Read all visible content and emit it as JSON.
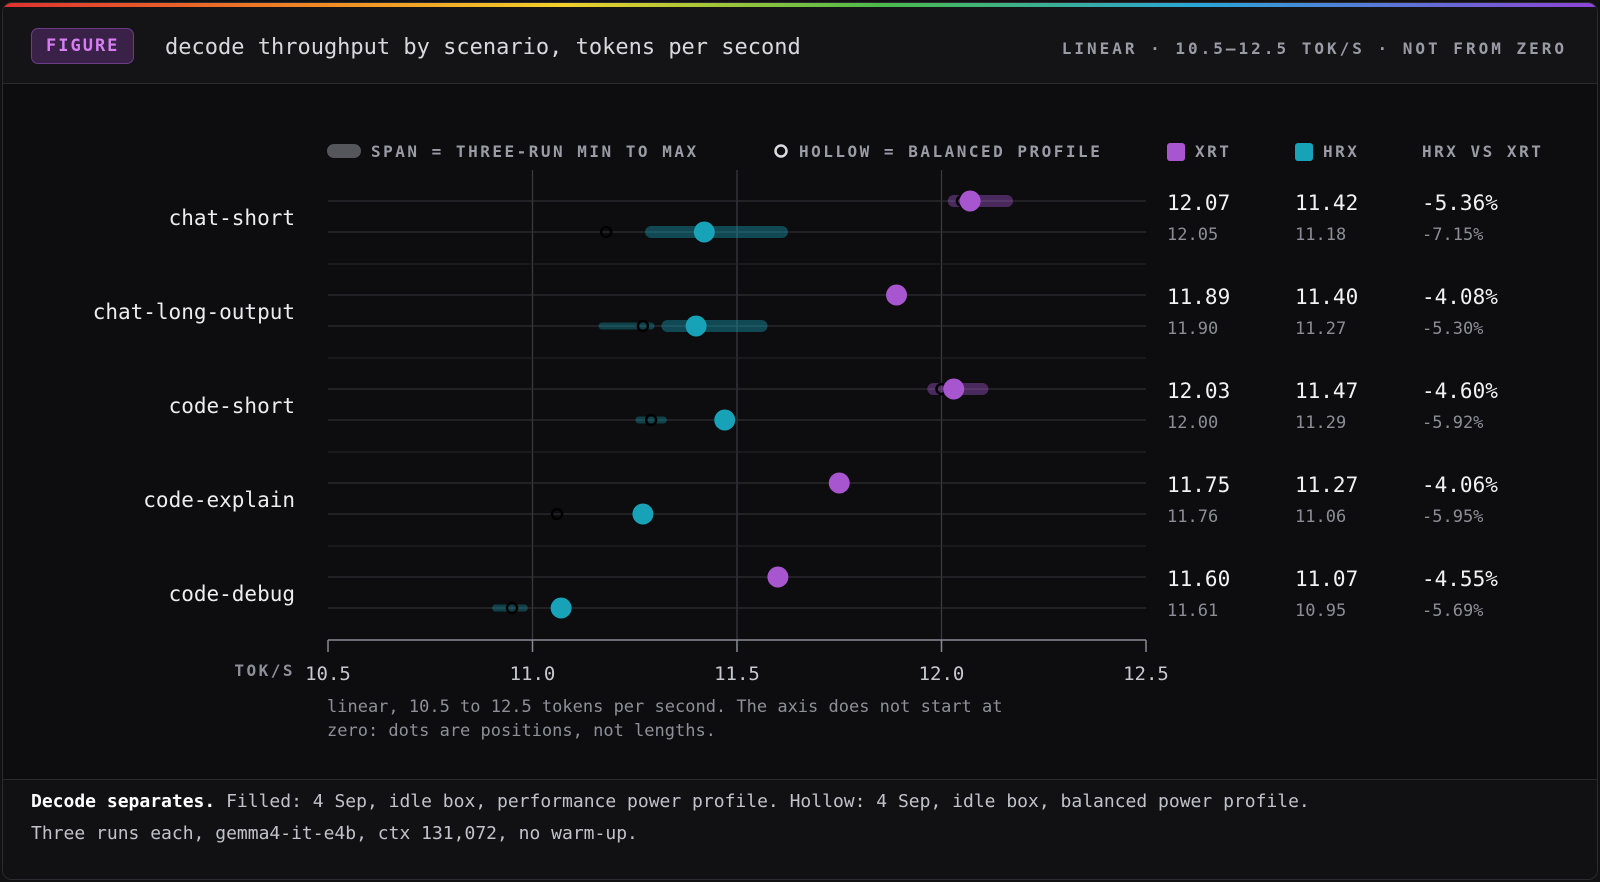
{
  "header": {
    "badge": "FIGURE",
    "title": "decode throughput by scenario, tokens per second",
    "scale_note": "LINEAR · 10.5–12.5 TOK/S · NOT FROM ZERO"
  },
  "legend": {
    "span": "SPAN = THREE-RUN MIN TO MAX",
    "hollow": "HOLLOW = BALANCED PROFILE",
    "col_xrt": "XRT",
    "col_hrx": "HRX",
    "col_delta": "HRX VS XRT"
  },
  "axis_note": [
    "linear, 10.5 to 12.5 tokens per second. The axis does not start at",
    "zero: dots are positions, not lengths."
  ],
  "footer": {
    "lead": "Decode separates.",
    "text_line1": " Filled: 4 Sep, idle box, performance power profile. Hollow: 4 Sep, idle box, balanced power profile.",
    "text_line2": "Three runs each, gemma4-it-e4b, ctx 131,072, no warm-up."
  },
  "colors": {
    "xrt": "#a855d0",
    "hrx": "#17a2b8",
    "grid": "#2f2f35",
    "hollow": "#000000"
  },
  "chart_data": {
    "type": "dot-range",
    "xlabel": "TOK/S",
    "xlim": [
      10.5,
      12.5
    ],
    "ticks": [
      10.5,
      11.0,
      11.5,
      12.0,
      12.5
    ],
    "tick_labels": [
      "10.5",
      "11.0",
      "11.5",
      "12.0",
      "12.5"
    ],
    "series_names": [
      "XRT",
      "HRX"
    ],
    "rows": [
      {
        "scenario": "chat-short",
        "xrt": {
          "value": 12.07,
          "balanced": 12.05,
          "span": [
            12.03,
            12.16
          ],
          "label": "12.07",
          "balanced_label": "12.05"
        },
        "hrx": {
          "value": 11.42,
          "balanced": 11.18,
          "span": [
            11.29,
            11.61
          ],
          "label": "11.42",
          "balanced_label": "11.18"
        },
        "delta": "-5.36%",
        "delta_balanced": "-7.15%"
      },
      {
        "scenario": "chat-long-output",
        "xrt": {
          "value": 11.89,
          "balanced": 11.9,
          "span": null,
          "label": "11.89",
          "balanced_label": "11.90"
        },
        "hrx": {
          "value": 11.4,
          "balanced": 11.27,
          "span": [
            11.33,
            11.56
          ],
          "balanced_span": [
            11.17,
            11.29
          ],
          "label": "11.40",
          "balanced_label": "11.27"
        },
        "delta": "-4.08%",
        "delta_balanced": "-5.30%"
      },
      {
        "scenario": "code-short",
        "xrt": {
          "value": 12.03,
          "balanced": 12.0,
          "span": [
            11.98,
            12.1
          ],
          "label": "12.03",
          "balanced_label": "12.00"
        },
        "hrx": {
          "value": 11.47,
          "balanced": 11.29,
          "span": null,
          "balanced_span": [
            11.26,
            11.32
          ],
          "label": "11.47",
          "balanced_label": "11.29"
        },
        "delta": "-4.60%",
        "delta_balanced": "-5.92%"
      },
      {
        "scenario": "code-explain",
        "xrt": {
          "value": 11.75,
          "balanced": 11.76,
          "span": null,
          "label": "11.75",
          "balanced_label": "11.76"
        },
        "hrx": {
          "value": 11.27,
          "balanced": 11.06,
          "span": null,
          "label": "11.27",
          "balanced_label": "11.06"
        },
        "delta": "-4.06%",
        "delta_balanced": "-5.95%"
      },
      {
        "scenario": "code-debug",
        "xrt": {
          "value": 11.6,
          "balanced": 11.61,
          "span": null,
          "label": "11.60",
          "balanced_label": "11.61"
        },
        "hrx": {
          "value": 11.07,
          "balanced": 10.95,
          "span": null,
          "balanced_span": [
            10.91,
            10.98
          ],
          "label": "11.07",
          "balanced_label": "10.95"
        },
        "delta": "-4.55%",
        "delta_balanced": "-5.69%"
      }
    ]
  }
}
